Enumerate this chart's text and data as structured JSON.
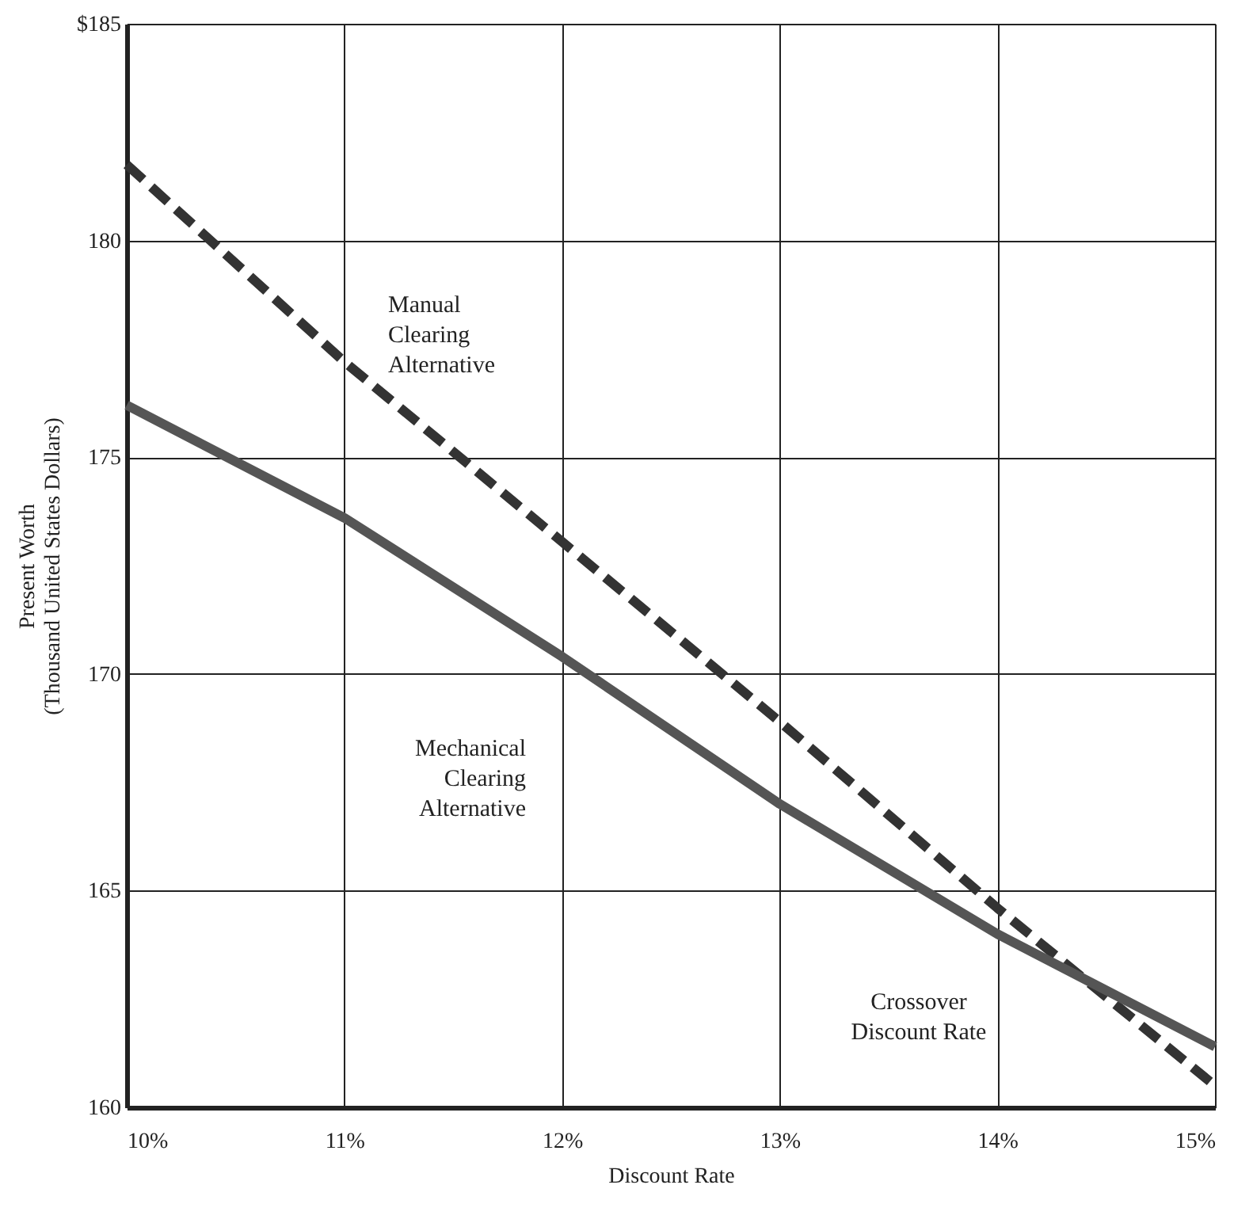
{
  "chart_data": {
    "type": "line",
    "xlabel": "Discount Rate",
    "ylabel": "Present Worth\n(Thousand United States Dollars)",
    "x": [
      10,
      11,
      12,
      13,
      14,
      15
    ],
    "series": [
      {
        "color": "#333333",
        "line_style": "dashed",
        "values": [
          181.75,
          177.2,
          173.05,
          168.9,
          164.6,
          160.5
        ]
      },
      {
        "color": "#555555",
        "line_style": "solid",
        "values": [
          176.2,
          173.6,
          170.4,
          167.0,
          164.0,
          161.4
        ]
      }
    ],
    "xlim": [
      10,
      15
    ],
    "ylim": [
      160,
      185
    ],
    "xticks": [
      {
        "value": 10,
        "label": "10%"
      },
      {
        "value": 11,
        "label": "11%"
      },
      {
        "value": 12,
        "label": "12%"
      },
      {
        "value": 13,
        "label": "13%"
      },
      {
        "value": 14,
        "label": "14%"
      },
      {
        "value": 15,
        "label": "15%"
      }
    ],
    "yticks": [
      160,
      165,
      170,
      175,
      180,
      {
        "value": 185,
        "label": "$185"
      }
    ],
    "grid": true,
    "marker": "none",
    "annotations": [
      "Manual\nClearing\nAlternative",
      "Mechanical\nClearing\nAlternative",
      "Crossover\nDiscount Rate"
    ]
  }
}
